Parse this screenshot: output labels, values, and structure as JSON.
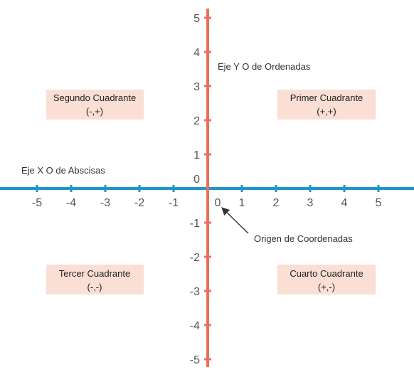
{
  "colors": {
    "x_axis": "#2394c6",
    "y_axis": "#e8705a",
    "quadrant_box": "#fbded4",
    "tick_text": "#555555",
    "label_text": "#333333"
  },
  "axes": {
    "x_title": "Eje X O de Abscisas",
    "y_title": "Eje Y O de Ordenadas",
    "x_ticks": [
      "-5",
      "-4",
      "-3",
      "-2",
      "-1",
      "0",
      "1",
      "2",
      "3",
      "4",
      "5"
    ],
    "y_ticks": [
      "5",
      "4",
      "3",
      "2",
      "1",
      "0",
      "-1",
      "-2",
      "-3",
      "-4",
      "-5"
    ]
  },
  "quadrants": [
    {
      "name": "Primer Cuadrante",
      "signs": "(+,+)"
    },
    {
      "name": "Segundo Cuadrante",
      "signs": "(-,+)"
    },
    {
      "name": "Tercer Cuadrante",
      "signs": "(-,-)"
    },
    {
      "name": "Cuarto Cuadrante",
      "signs": "(+,-)"
    }
  ],
  "origin": {
    "label": "Origen de Coordenadas"
  }
}
